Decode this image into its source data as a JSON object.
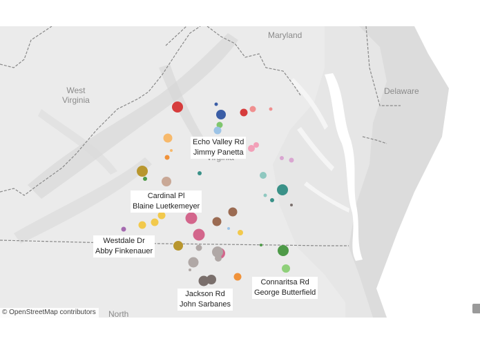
{
  "map": {
    "place_labels": {
      "maryland": "Maryland",
      "west_virginia": "West\nVirginia",
      "delaware": "Delaware",
      "virginia": "Virginia",
      "north": "North"
    },
    "credit": "© OpenStreetMap contributors",
    "annotations": [
      {
        "id": "echo-valley",
        "line1": "Echo Valley Rd",
        "line2": "Jimmy Panetta"
      },
      {
        "id": "cardinal",
        "line1": "Cardinal Pl",
        "line2": "Blaine Luetkemeyer"
      },
      {
        "id": "westdale",
        "line1": "Westdale Dr",
        "line2": "Abby Finkenauer"
      },
      {
        "id": "connaritsa",
        "line1": "Connaritsa Rd",
        "line2": "George Butterfield"
      },
      {
        "id": "jackson",
        "line1": "Jackson Rd",
        "line2": "John Sarbanes"
      }
    ],
    "marker_colors": {
      "red": "#d63c3c",
      "salmon": "#f07f7f",
      "pink": "#f2a0b8",
      "magenta": "#d3668c",
      "blue": "#3b5ea6",
      "lightblue": "#9cc3e6",
      "orange": "#f0923a",
      "lightorange": "#f7b96b",
      "gold": "#b8962e",
      "yellow": "#f2c94c",
      "tan": "#c9a896",
      "teal": "#3a9188",
      "lightteal": "#8fc8c0",
      "brown": "#9b6b52",
      "gray": "#b0a8a6",
      "darkgray": "#7a6f6c",
      "green": "#4e9a48",
      "lightgreen": "#8fd07a",
      "purple": "#a56ab0",
      "lilac": "#d9a6d1"
    }
  }
}
